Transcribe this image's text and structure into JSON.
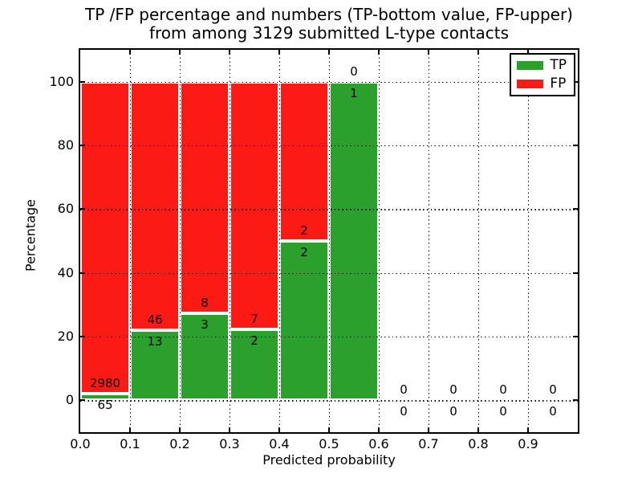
{
  "figure": {
    "title_line1": "TP /FP percentage and numbers (TP-bottom value, FP-upper)",
    "title_line2": "from among 3129 submitted L-type contacts",
    "xlabel": "Predicted probability",
    "ylabel": "Percentage"
  },
  "legend": {
    "items": [
      {
        "label": "TP",
        "color": "#2ca02c"
      },
      {
        "label": "FP",
        "color": "#fb1b14"
      }
    ]
  },
  "chart_data": {
    "type": "bar",
    "stacked": true,
    "percentage": true,
    "title": "TP /FP percentage and numbers (TP-bottom value, FP-upper) from among 3129 submitted L-type contacts",
    "xlabel": "Predicted probability",
    "ylabel": "Percentage",
    "xlim": [
      0.0,
      1.0
    ],
    "ylim": [
      -10,
      110
    ],
    "xticks": [
      0.0,
      0.1,
      0.2,
      0.3,
      0.4,
      0.5,
      0.6,
      0.7,
      0.8,
      0.9
    ],
    "xtick_labels": [
      "0.0",
      "0.1",
      "0.2",
      "0.3",
      "0.4",
      "0.5",
      "0.6",
      "0.7",
      "0.8",
      "0.9"
    ],
    "yticks": [
      0,
      20,
      40,
      60,
      80,
      100
    ],
    "ytick_labels": [
      "0",
      "20",
      "40",
      "60",
      "80",
      "100"
    ],
    "grid": "dotted-both-axes",
    "legend_position": "upper-right",
    "bin_width": 0.1,
    "total_submitted": 3129,
    "series": [
      {
        "name": "TP",
        "color": "#2ca02c",
        "position": "bottom",
        "counts": [
          65,
          13,
          3,
          2,
          2,
          1,
          0,
          0,
          0,
          0
        ]
      },
      {
        "name": "FP",
        "color": "#fb1b14",
        "position": "top",
        "counts": [
          2980,
          46,
          8,
          7,
          2,
          0,
          0,
          0,
          0,
          0
        ]
      }
    ],
    "tp_percent_by_bin": [
      2.1,
      22.0,
      27.3,
      22.2,
      50.0,
      100.0,
      null,
      null,
      null,
      null
    ]
  }
}
